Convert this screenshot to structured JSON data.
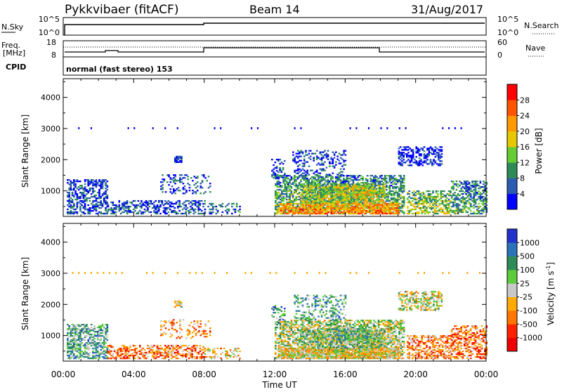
{
  "header": {
    "title": "Pykkvibaer (fitACF)",
    "beam": "Beam 14",
    "date": "31/Aug/2017"
  },
  "strips": {
    "nsky_label": "N.Sky",
    "nsky_ticks": [
      "10^5",
      "10^0"
    ],
    "nsearch_label": "N.Search",
    "nsearch_ticks": [
      "10^5",
      "10^0"
    ],
    "freq_label_line1": "Freq.",
    "freq_label_line2": "[MHz]",
    "freq_ticks": [
      "18",
      "8"
    ],
    "nave_label": "Nave",
    "nave_ticks": [
      "60",
      "0"
    ],
    "cpid_label": "CPID",
    "cpid_value": "normal (fast stereo) 153"
  },
  "chart_data": [
    {
      "type": "heatmap",
      "name": "power",
      "ylabel": "Slant Range [km]",
      "yticks": [
        "4000",
        "3000",
        "2000",
        "1000"
      ],
      "ylim": [
        180,
        4600
      ],
      "colorbar_label": "Power [dB]",
      "colorbar_ticks": [
        "28",
        "24",
        "20",
        "16",
        "12",
        "8",
        "4"
      ],
      "colorbar_range": [
        0,
        32
      ],
      "colors": [
        "#0000ff",
        "#2a5cb0",
        "#2e8b57",
        "#66cc33",
        "#e6c800",
        "#ff9900",
        "#ff5500",
        "#ff0000"
      ]
    },
    {
      "type": "heatmap",
      "name": "velocity",
      "ylabel": "Slant Range [km]",
      "yticks": [
        "4000",
        "3000",
        "2000",
        "1000"
      ],
      "ylim": [
        180,
        4600
      ],
      "colorbar_label": "Velocity [m s",
      "colorbar_label_sup": "-1",
      "colorbar_label_end": "]",
      "colorbar_ticks": [
        "1000",
        "500",
        "100",
        "25",
        "-25",
        "-100",
        "-500",
        "-1000"
      ],
      "colors": [
        "#2233cc",
        "#2b73b8",
        "#2e8b57",
        "#5ccb3c",
        "#c8c8c8",
        "#ffaa00",
        "#ff7700",
        "#ff2200",
        "#ee0000"
      ]
    }
  ],
  "xaxis": {
    "label": "Time UT",
    "ticks": [
      "00:00",
      "04:00",
      "08:00",
      "12:00",
      "16:00",
      "20:00",
      "00:00"
    ],
    "xlim": [
      0,
      24
    ]
  }
}
